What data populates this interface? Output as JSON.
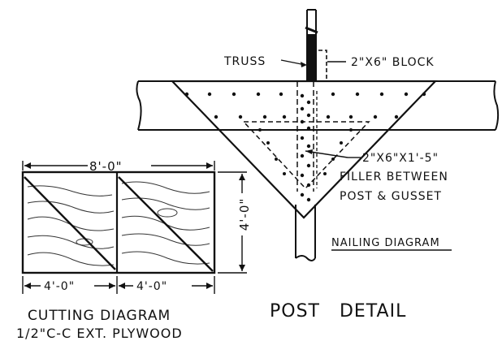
{
  "labels": {
    "truss": "TRUSS",
    "block": "2\"X6\" BLOCK",
    "filler_line1": "2\"X6\"X1'-5\"",
    "filler_line2": "FILLER BETWEEN",
    "filler_line3": "POST & GUSSET",
    "nailing": "NAILING DIAGRAM",
    "post_detail": "POST   DETAIL",
    "cutting_line1": "CUTTING DIAGRAM",
    "cutting_line2": "1/2\"C-C EXT. PLYWOOD"
  },
  "dimensions": {
    "overall_width": "8'-0\"",
    "height": "4'-0\"",
    "left_half": "4'-0\"",
    "right_half": "4'-0\""
  },
  "colors": {
    "ink": "#111111",
    "paper": "#ffffff"
  }
}
